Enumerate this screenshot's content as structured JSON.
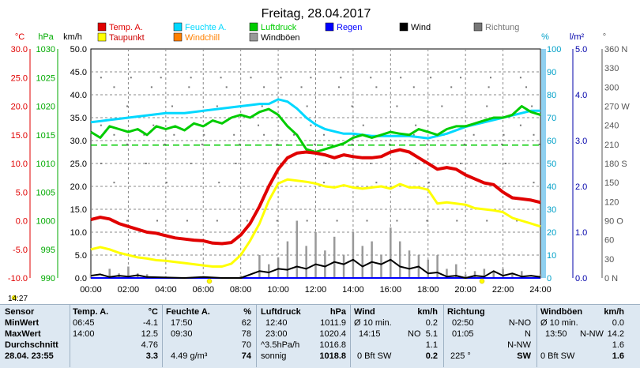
{
  "title": "Freitag, 28.04.2017",
  "legend": [
    {
      "label": "Temp. A.",
      "color": "#e00000"
    },
    {
      "label": "Feuchte A.",
      "color": "#00d8ff"
    },
    {
      "label": "Luftdruck",
      "color": "#00cc00"
    },
    {
      "label": "Regen",
      "color": "#0000ff"
    },
    {
      "label": "Wind",
      "color": "#000000"
    },
    {
      "label": "Richtung",
      "color": "#777777"
    },
    {
      "label": "Taupunkt",
      "color": "#ffff00"
    },
    {
      "label": "Windchill",
      "color": "#ff8000"
    },
    {
      "label": "Windböen",
      "color": "#999999"
    }
  ],
  "units": {
    "temp": "°C",
    "press": "hPa",
    "wind": "km/h",
    "hum": "%",
    "rain": "l/m²",
    "dir": "°"
  },
  "time_label": "14:27",
  "chart_data": {
    "type": "line",
    "x_ticks": [
      "00:00",
      "02:00",
      "04:00",
      "06:00",
      "08:00",
      "10:00",
      "12:00",
      "14:00",
      "16:00",
      "18:00",
      "20:00",
      "22:00",
      "24:00"
    ],
    "axes": {
      "temp": {
        "ticks": [
          "30.0",
          "25.0",
          "20.0",
          "15.0",
          "10.0",
          "5.0",
          "0.0",
          "-5.0",
          "-10.0"
        ],
        "range": [
          -10,
          30
        ],
        "color": "#e00000"
      },
      "press": {
        "ticks": [
          "1030",
          "1025",
          "1020",
          "1015",
          "1010",
          "1005",
          "1000",
          "995",
          "990"
        ],
        "range": [
          990,
          1030
        ],
        "color": "#00aa00"
      },
      "wind": {
        "ticks": [
          "50.0",
          "45.0",
          "40.0",
          "35.0",
          "30.0",
          "25.0",
          "20.0",
          "15.0",
          "10.0",
          "5.0",
          "0.0"
        ],
        "range": [
          0,
          50
        ],
        "color": "#000000"
      },
      "hum": {
        "ticks": [
          "100",
          "90",
          "80",
          "70",
          "60",
          "50",
          "40",
          "30",
          "20",
          "10",
          "0"
        ],
        "range": [
          0,
          100
        ],
        "color": "#00c0e0"
      },
      "rain": {
        "ticks": [
          "5.0",
          "4.0",
          "3.0",
          "2.0",
          "1.0",
          "0.0"
        ],
        "range": [
          0,
          5
        ],
        "color": "#0000aa"
      },
      "dir": {
        "ticks": [
          "360 N",
          "330",
          "300",
          "270 W",
          "240",
          "210",
          "180 S",
          "150",
          "120",
          "90 O",
          "60",
          "30",
          "0 N"
        ],
        "range": [
          0,
          360
        ],
        "color": "#555555"
      }
    },
    "series": [
      {
        "name": "Temp. A.",
        "axis": "temp",
        "color": "#e00000",
        "x": [
          0,
          0.5,
          1,
          1.5,
          2,
          2.5,
          3,
          3.5,
          4,
          4.5,
          5,
          5.5,
          6,
          6.5,
          7,
          7.5,
          8,
          8.5,
          9,
          9.5,
          10,
          10.5,
          11,
          11.5,
          12,
          12.5,
          13,
          13.5,
          14,
          14.5,
          15,
          15.5,
          16,
          16.5,
          17,
          17.5,
          18,
          18.5,
          19,
          19.5,
          20,
          20.5,
          21,
          21.5,
          22,
          22.5,
          23,
          23.5,
          24
        ],
        "y": [
          0.2,
          0.6,
          0.3,
          -0.5,
          -1.0,
          -1.5,
          -2.0,
          -2.2,
          -2.6,
          -3.0,
          -3.2,
          -3.4,
          -3.5,
          -3.9,
          -4.0,
          -3.8,
          -2.5,
          -0.5,
          2.5,
          6.0,
          9.0,
          11.0,
          11.8,
          12.0,
          11.8,
          11.5,
          11.0,
          11.5,
          11.2,
          11.0,
          11.0,
          11.2,
          12.0,
          12.4,
          12.0,
          11.0,
          10.0,
          9.0,
          9.3,
          9.0,
          8.0,
          7.3,
          6.6,
          6.3,
          5.0,
          4.0,
          3.8,
          3.6,
          3.2
        ]
      },
      {
        "name": "Taupunkt",
        "axis": "temp",
        "color": "#ffff00",
        "x": [
          0,
          0.5,
          1,
          1.5,
          2,
          2.5,
          3,
          3.5,
          4,
          4.5,
          5,
          5.5,
          6,
          6.5,
          7,
          7.5,
          8,
          8.5,
          9,
          9.5,
          10,
          10.5,
          11,
          11.5,
          12,
          12.5,
          13,
          13.5,
          14,
          14.5,
          15,
          15.5,
          16,
          16.5,
          17,
          17.5,
          18,
          18.5,
          19,
          19.5,
          20,
          20.5,
          21,
          21.5,
          22,
          22.5,
          23,
          23.5,
          24
        ],
        "y": [
          -5.0,
          -4.6,
          -5.0,
          -5.6,
          -6.0,
          -6.4,
          -6.6,
          -6.9,
          -7.0,
          -7.2,
          -7.4,
          -7.6,
          -7.8,
          -8.0,
          -8.0,
          -7.5,
          -6.0,
          -3.5,
          -0.5,
          3.5,
          6.5,
          7.2,
          7.0,
          6.8,
          6.5,
          6.0,
          5.8,
          6.2,
          5.8,
          5.6,
          5.8,
          6.0,
          5.6,
          6.4,
          5.8,
          5.8,
          5.4,
          3.0,
          3.2,
          3.0,
          2.8,
          2.2,
          2.0,
          1.8,
          1.5,
          0.5,
          0.0,
          -0.5,
          -1.0
        ]
      },
      {
        "name": "Feuchte A.",
        "axis": "hum",
        "color": "#00d8ff",
        "x": [
          0,
          1,
          2,
          3,
          4,
          5,
          6,
          7,
          8,
          8.5,
          9,
          9.5,
          10,
          10.5,
          11,
          11.5,
          12,
          12.5,
          13,
          13.5,
          14,
          15,
          16,
          17,
          18,
          19,
          20,
          21,
          22,
          23,
          23.5,
          24
        ],
        "y": [
          68,
          69,
          70,
          71,
          72,
          72,
          73,
          74,
          75,
          75.5,
          76,
          76,
          78,
          77,
          74,
          70,
          67,
          65,
          64,
          63,
          63,
          62,
          62,
          62,
          61,
          63,
          66,
          68,
          70,
          72,
          73,
          73
        ]
      },
      {
        "name": "Luftdruck",
        "axis": "press",
        "color": "#00cc00",
        "x": [
          0,
          0.5,
          1,
          1.5,
          2,
          2.5,
          3,
          3.5,
          4,
          4.5,
          5,
          5.5,
          6,
          6.5,
          7,
          7.5,
          8,
          8.5,
          9,
          9.5,
          10,
          10.5,
          11,
          11.5,
          12,
          12.5,
          13,
          13.5,
          14,
          14.5,
          15,
          15.5,
          16,
          16.5,
          17,
          17.5,
          18,
          18.5,
          19,
          19.5,
          20,
          20.5,
          21,
          21.5,
          22,
          22.5,
          23,
          23.5,
          24
        ],
        "y": [
          1015.5,
          1014.5,
          1016.5,
          1016.0,
          1015.5,
          1016.0,
          1015.0,
          1016.5,
          1016.0,
          1016.5,
          1015.8,
          1017.0,
          1016.5,
          1017.5,
          1017.0,
          1018.0,
          1018.5,
          1018.0,
          1019.0,
          1019.5,
          1018.5,
          1016.5,
          1015.0,
          1012.5,
          1012.0,
          1012.5,
          1013.0,
          1013.5,
          1014.5,
          1015.0,
          1014.5,
          1015.0,
          1015.5,
          1015.2,
          1015.0,
          1016.0,
          1015.5,
          1015.0,
          1016.0,
          1016.5,
          1016.5,
          1017.0,
          1017.5,
          1018.0,
          1018.0,
          1018.5,
          1020.0,
          1019.0,
          1018.5
        ]
      },
      {
        "name": "Wind",
        "axis": "wind",
        "color": "#000000",
        "x": [
          0,
          0.5,
          1,
          1.5,
          2,
          2.5,
          3,
          4,
          5,
          6,
          7,
          8,
          9,
          9.5,
          10,
          10.5,
          11,
          11.5,
          12,
          12.5,
          13,
          13.5,
          14,
          14.5,
          15,
          15.5,
          16,
          16.5,
          17,
          17.5,
          18,
          18.5,
          19,
          19.5,
          20,
          20.5,
          21,
          21.5,
          22,
          22.5,
          23,
          23.5,
          24
        ],
        "y": [
          0.5,
          0.8,
          0.2,
          0.5,
          0.3,
          0.6,
          0.2,
          0.1,
          0.0,
          0.2,
          0.0,
          0.0,
          1.5,
          1.2,
          2.0,
          1.8,
          2.5,
          2.0,
          3.0,
          2.5,
          3.5,
          3.0,
          4.0,
          2.5,
          3.5,
          3.0,
          4.0,
          2.5,
          2.0,
          2.5,
          1.0,
          1.2,
          0.3,
          0.5,
          0.0,
          0.5,
          0.3,
          1.5,
          0.5,
          1.0,
          0.3,
          0.5,
          0.2
        ]
      },
      {
        "name": "Windböen",
        "axis": "wind",
        "color": "#999999",
        "x": [
          0,
          1,
          1.5,
          2,
          2.5,
          3,
          4,
          5,
          6,
          7,
          8,
          9,
          9.5,
          10,
          10.5,
          11,
          11.5,
          12,
          12.5,
          13,
          13.5,
          14,
          14.5,
          15,
          15.5,
          16,
          16.5,
          17,
          17.5,
          18,
          18.5,
          19,
          19.5,
          20,
          20.5,
          21,
          21.5,
          22,
          22.5,
          23,
          24
        ],
        "y": [
          1.0,
          2.0,
          1.0,
          2.5,
          1.0,
          0.8,
          0.3,
          0.2,
          0.2,
          0.2,
          0.5,
          5.0,
          3.0,
          4.5,
          8.0,
          12.5,
          7.0,
          10.0,
          6.0,
          9.0,
          5.0,
          10.0,
          7.0,
          8.0,
          5.0,
          11.0,
          8.0,
          6.0,
          5.0,
          4.0,
          5.0,
          2.0,
          3.0,
          0.8,
          1.5,
          2.0,
          1.5,
          2.0,
          1.0,
          1.5,
          0.8
        ]
      },
      {
        "name": "Regen",
        "axis": "rain",
        "color": "#0000ff",
        "x": [
          0,
          24
        ],
        "y": [
          0,
          0
        ]
      }
    ],
    "dashed_line": {
      "axis": "hum",
      "value": 58,
      "color": "#00cc00"
    },
    "richtung_dots_deg": [
      315,
      300,
      270,
      240,
      225,
      210,
      180,
      150,
      90
    ]
  },
  "stats": {
    "row_labels": [
      "Sensor",
      "MinWert",
      "MaxWert",
      "Durchschnitt",
      "28.04. 23:55"
    ],
    "temp": {
      "hdr": "Temp. A.",
      "unit": "°C",
      "min_t": "06:45",
      "min_v": "-4.1",
      "max_t": "14:00",
      "max_v": "12.5",
      "avg": "4.76",
      "cur": "3.3"
    },
    "hum": {
      "hdr": "Feuchte A.",
      "unit": "%",
      "min_t": "17:50",
      "min_v": "62",
      "max_t": "09:30",
      "max_v": "78",
      "avg": "70",
      "cur_note": "4.49 g/m³",
      "cur": "74"
    },
    "press": {
      "hdr": "Luftdruck",
      "unit": "hPa",
      "min_t": "12:40",
      "min_v": "1011.9",
      "max_t": "23:00",
      "max_v": "1020.4",
      "avg_note": "^3.5hPa/h",
      "avg": "1016.8",
      "cur_note": "sonnig",
      "cur": "1018.8"
    },
    "wind": {
      "hdr": "Wind",
      "unit": "km/h",
      "min_t": "Ø 10 min.",
      "min_v": "0.2",
      "max_t": "14:15",
      "max_d": "NO",
      "max_v": "5.1",
      "avg": "1.1",
      "cur_note": "0 Bft SW",
      "cur": "0.2"
    },
    "dir": {
      "hdr": "Richtung",
      "min_t": "02:50",
      "min_v": "N-NO",
      "max_t": "01:05",
      "max_v": "N",
      "avg": "N-NW",
      "cur_note": "225 °",
      "cur": "SW"
    },
    "gust": {
      "hdr": "Windböen",
      "unit": "km/h",
      "min_t": "Ø 10 min.",
      "min_v": "0.0",
      "max_t": "13:50",
      "max_d": "N-NW",
      "max_v": "14.2",
      "avg": "1.6",
      "cur_note": "0 Bft SW",
      "cur": "1.6"
    }
  }
}
